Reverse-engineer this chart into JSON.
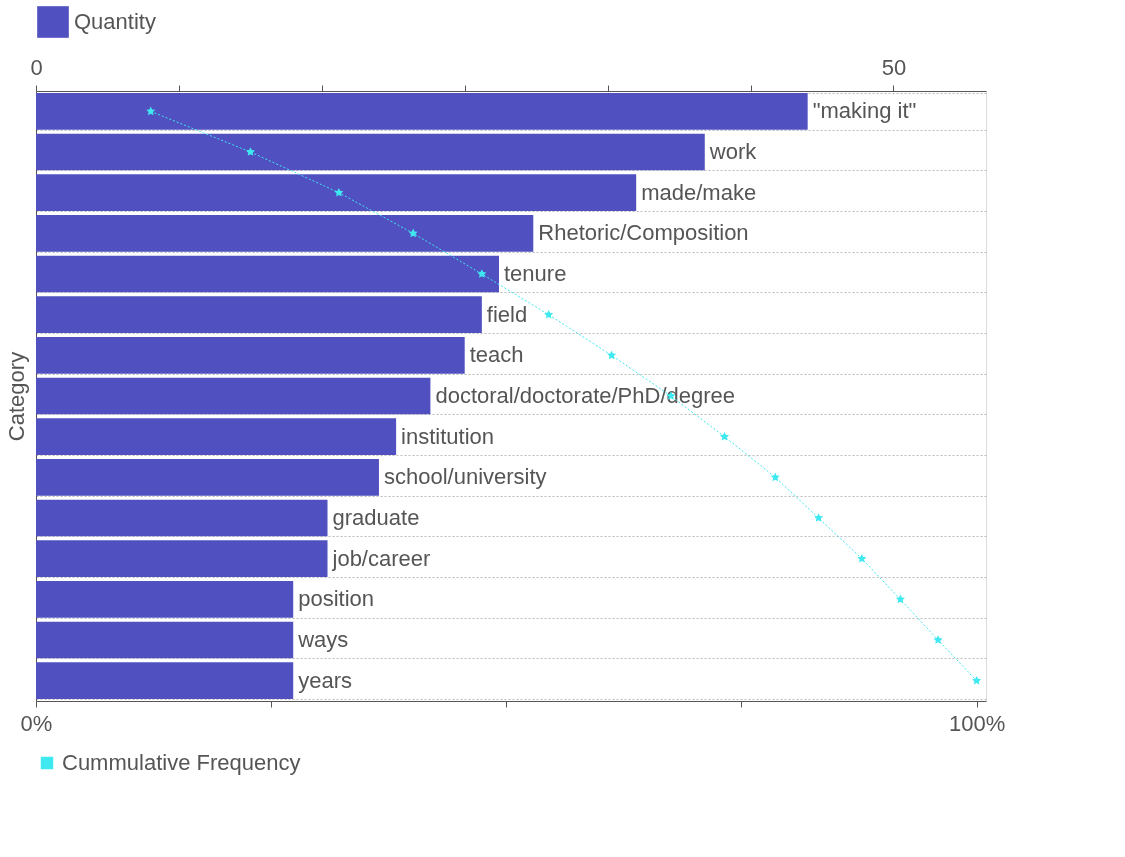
{
  "chart_data": {
    "type": "bar",
    "orientation": "horizontal",
    "ylabel": "Category",
    "categories": [
      "\"making it\"",
      "work",
      "made/make",
      "Rhetoric/Composition",
      "tenure",
      "field",
      "teach",
      "doctoral/doctorate/PhD/degree",
      "institution",
      "school/university",
      "graduate",
      "job/career",
      "position",
      "ways",
      "years"
    ],
    "series": [
      {
        "name": "Quantity",
        "axis": "x2",
        "color": "#5050c0",
        "values": [
          45,
          39,
          35,
          29,
          27,
          26,
          25,
          23,
          21,
          20,
          17,
          17,
          15,
          15,
          15
        ]
      },
      {
        "name": "Cummulative Frequency",
        "type": "line",
        "color": "#40e8f0",
        "marker": "star",
        "line_style": "dotted",
        "values": [
          12.2,
          22.8,
          32.2,
          40.1,
          47.4,
          54.5,
          61.2,
          67.5,
          73.2,
          78.6,
          83.2,
          87.8,
          91.9,
          95.9,
          100
        ]
      }
    ],
    "x2lim": [
      0,
      55.4
    ],
    "x2ticks": [
      0,
      {
        "value": 8.33,
        "label": null
      },
      {
        "value": 16.67,
        "label": null
      },
      {
        "value": 25,
        "label": null
      },
      {
        "value": 33.33,
        "label": null
      },
      {
        "value": 41.67,
        "label": null
      },
      50
    ],
    "xlim": [
      0,
      101
    ],
    "xticks": [
      {
        "value": 0,
        "label": "0%"
      },
      {
        "value": 25,
        "label": null
      },
      {
        "value": 50,
        "label": null
      },
      {
        "value": 75,
        "label": null
      },
      {
        "value": 100,
        "label": "100%"
      }
    ],
    "grid": "y",
    "legend": "top"
  }
}
